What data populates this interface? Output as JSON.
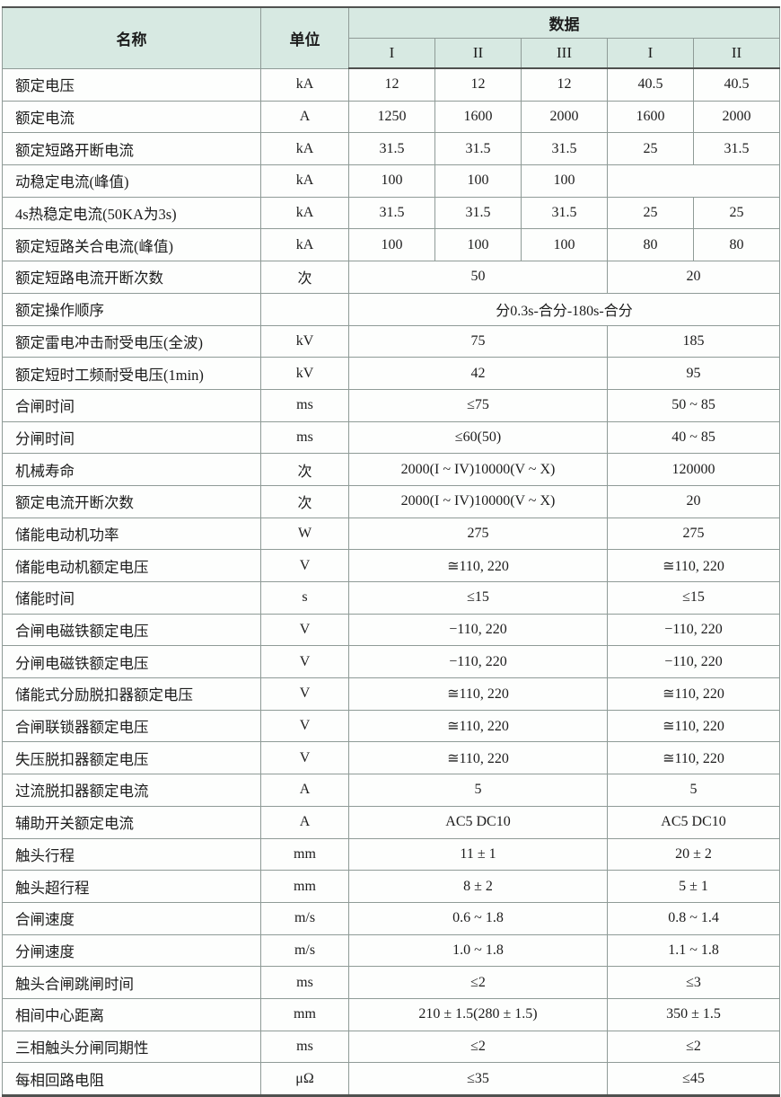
{
  "table": {
    "header": {
      "name_label": "名称",
      "unit_label": "单位",
      "data_label": "数据",
      "sub_columns": [
        "I",
        "II",
        "III",
        "I",
        "II"
      ]
    },
    "colors": {
      "header_bg": "#d7e9e2",
      "grid_border": "#8f9b97",
      "heavy_border": "#4f514f",
      "text": "#1c1c1c"
    },
    "rows": [
      {
        "name": "额定电压",
        "unit": "kA",
        "cells": [
          {
            "text": "12"
          },
          {
            "text": "12"
          },
          {
            "text": "12"
          },
          {
            "text": "40.5"
          },
          {
            "text": "40.5"
          }
        ]
      },
      {
        "name": "额定电流",
        "unit": "A",
        "cells": [
          {
            "text": "1250"
          },
          {
            "text": "1600"
          },
          {
            "text": "2000"
          },
          {
            "text": "1600"
          },
          {
            "text": "2000"
          }
        ]
      },
      {
        "name": "额定短路开断电流",
        "unit": "kA",
        "cells": [
          {
            "text": "31.5"
          },
          {
            "text": "31.5"
          },
          {
            "text": "31.5"
          },
          {
            "text": "25"
          },
          {
            "text": "31.5"
          }
        ]
      },
      {
        "name": "动稳定电流(峰值)",
        "unit": "kA",
        "cells": [
          {
            "text": "100"
          },
          {
            "text": "100"
          },
          {
            "text": "100"
          },
          {
            "text": "",
            "span": 2
          }
        ]
      },
      {
        "name": "4s热稳定电流(50KA为3s)",
        "unit": "kA",
        "cells": [
          {
            "text": "31.5"
          },
          {
            "text": "31.5"
          },
          {
            "text": "31.5"
          },
          {
            "text": "25"
          },
          {
            "text": "25"
          }
        ]
      },
      {
        "name": "额定短路关合电流(峰值)",
        "unit": "kA",
        "cells": [
          {
            "text": "100"
          },
          {
            "text": "100"
          },
          {
            "text": "100"
          },
          {
            "text": "80"
          },
          {
            "text": "80"
          }
        ]
      },
      {
        "name": "额定短路电流开断次数",
        "unit": "次",
        "cells": [
          {
            "text": "50",
            "span": 3
          },
          {
            "text": "20",
            "span": 2
          }
        ]
      },
      {
        "name": "额定操作顺序",
        "unit": "",
        "cells": [
          {
            "text": "分0.3s-合分-180s-合分",
            "span": 5
          }
        ]
      },
      {
        "name": "额定雷电冲击耐受电压(全波)",
        "unit": "kV",
        "cells": [
          {
            "text": "75",
            "span": 3
          },
          {
            "text": "185",
            "span": 2
          }
        ]
      },
      {
        "name": "额定短时工频耐受电压(1min)",
        "unit": "kV",
        "cells": [
          {
            "text": "42",
            "span": 3
          },
          {
            "text": "95",
            "span": 2
          }
        ]
      },
      {
        "name": "合闸时间",
        "unit": "ms",
        "cells": [
          {
            "text": "≤75",
            "span": 3
          },
          {
            "text": "50 ~ 85",
            "span": 2
          }
        ]
      },
      {
        "name": "分闸时间",
        "unit": "ms",
        "cells": [
          {
            "text": "≤60(50)",
            "span": 3
          },
          {
            "text": "40 ~ 85",
            "span": 2
          }
        ]
      },
      {
        "name": "机械寿命",
        "unit": "次",
        "cells": [
          {
            "text": "2000(I ~ IV)10000(V ~ X)",
            "span": 3
          },
          {
            "text": "120000",
            "span": 2
          }
        ]
      },
      {
        "name": "额定电流开断次数",
        "unit": "次",
        "cells": [
          {
            "text": "2000(I ~ IV)10000(V ~ X)",
            "span": 3
          },
          {
            "text": "20",
            "span": 2
          }
        ]
      },
      {
        "name": "储能电动机功率",
        "unit": "W",
        "cells": [
          {
            "text": "275",
            "span": 3
          },
          {
            "text": "275",
            "span": 2
          }
        ]
      },
      {
        "name": "储能电动机额定电压",
        "unit": "V",
        "cells": [
          {
            "text": "≅110, 220",
            "span": 3
          },
          {
            "text": "≅110, 220",
            "span": 2
          }
        ]
      },
      {
        "name": "储能时间",
        "unit": "s",
        "cells": [
          {
            "text": "≤15",
            "span": 3
          },
          {
            "text": "≤15",
            "span": 2
          }
        ]
      },
      {
        "name": "合闸电磁铁额定电压",
        "unit": "V",
        "cells": [
          {
            "text": "−110, 220",
            "span": 3
          },
          {
            "text": "−110, 220",
            "span": 2
          }
        ]
      },
      {
        "name": "分闸电磁铁额定电压",
        "unit": "V",
        "cells": [
          {
            "text": "−110, 220",
            "span": 3
          },
          {
            "text": "−110, 220",
            "span": 2
          }
        ]
      },
      {
        "name": "储能式分励脱扣器额定电压",
        "unit": "V",
        "cells": [
          {
            "text": "≅110, 220",
            "span": 3
          },
          {
            "text": "≅110, 220",
            "span": 2
          }
        ]
      },
      {
        "name": "合闸联锁器额定电压",
        "unit": "V",
        "cells": [
          {
            "text": "≅110, 220",
            "span": 3
          },
          {
            "text": "≅110, 220",
            "span": 2
          }
        ]
      },
      {
        "name": "失压脱扣器额定电压",
        "unit": "V",
        "cells": [
          {
            "text": "≅110, 220",
            "span": 3
          },
          {
            "text": "≅110, 220",
            "span": 2
          }
        ]
      },
      {
        "name": "过流脱扣器额定电流",
        "unit": "A",
        "cells": [
          {
            "text": "5",
            "span": 3
          },
          {
            "text": "5",
            "span": 2
          }
        ]
      },
      {
        "name": "辅助开关额定电流",
        "unit": "A",
        "cells": [
          {
            "text": "AC5  DC10",
            "span": 3
          },
          {
            "text": "AC5  DC10",
            "span": 2
          }
        ]
      },
      {
        "name": "触头行程",
        "unit": "mm",
        "cells": [
          {
            "text": "11 ± 1",
            "span": 3
          },
          {
            "text": "20 ± 2",
            "span": 2
          }
        ]
      },
      {
        "name": "触头超行程",
        "unit": "mm",
        "cells": [
          {
            "text": "8 ± 2",
            "span": 3
          },
          {
            "text": "5 ± 1",
            "span": 2
          }
        ]
      },
      {
        "name": "合闸速度",
        "unit": "m/s",
        "cells": [
          {
            "text": "0.6 ~ 1.8",
            "span": 3
          },
          {
            "text": "0.8 ~ 1.4",
            "span": 2
          }
        ]
      },
      {
        "name": "分闸速度",
        "unit": "m/s",
        "cells": [
          {
            "text": "1.0 ~ 1.8",
            "span": 3
          },
          {
            "text": "1.1 ~ 1.8",
            "span": 2
          }
        ]
      },
      {
        "name": "触头合闸跳闸时间",
        "unit": "ms",
        "cells": [
          {
            "text": "≤2",
            "span": 3
          },
          {
            "text": "≤3",
            "span": 2
          }
        ]
      },
      {
        "name": "相间中心距离",
        "unit": "mm",
        "cells": [
          {
            "text": "210 ± 1.5(280 ± 1.5)",
            "span": 3
          },
          {
            "text": "350 ± 1.5",
            "span": 2
          }
        ]
      },
      {
        "name": "三相触头分闸同期性",
        "unit": "ms",
        "cells": [
          {
            "text": "≤2",
            "span": 3
          },
          {
            "text": "≤2",
            "span": 2
          }
        ]
      },
      {
        "name": "每相回路电阻",
        "unit": "μΩ",
        "cells": [
          {
            "text": "≤35",
            "span": 3
          },
          {
            "text": "≤45",
            "span": 2
          }
        ]
      }
    ]
  }
}
